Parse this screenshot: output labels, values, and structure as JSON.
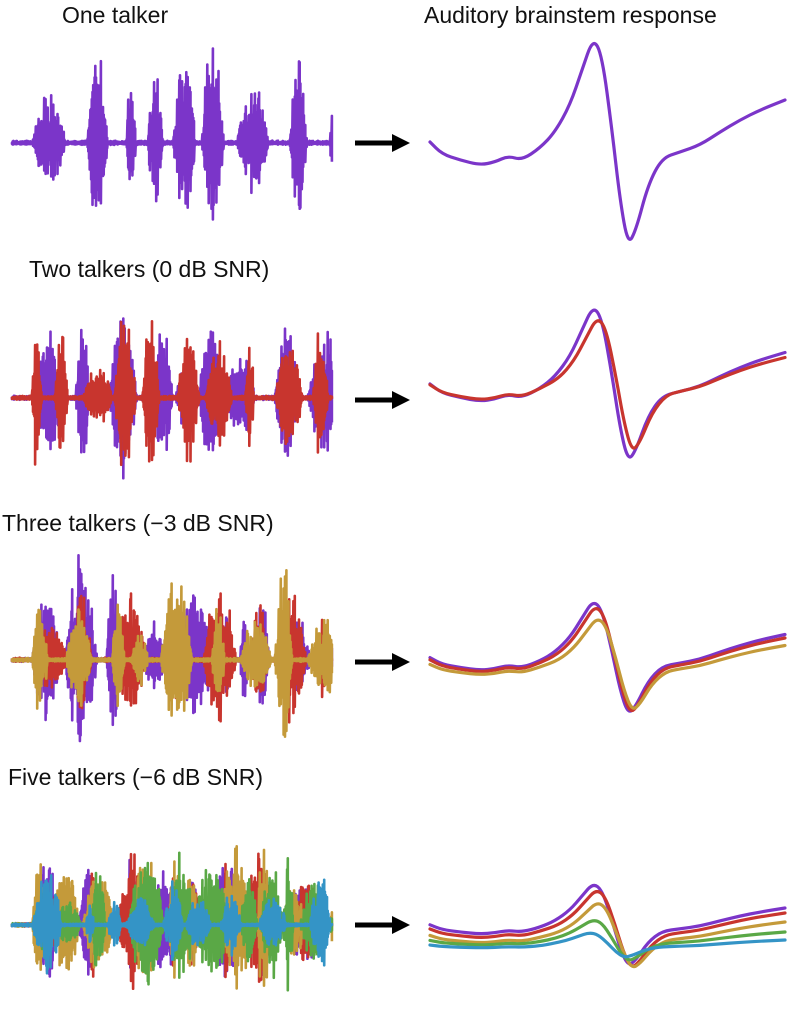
{
  "column_titles": {
    "right": "Auditory brainstem response"
  },
  "panels": [
    {
      "title": "One talker",
      "talkers": 1
    },
    {
      "title": "Two talkers (0 dB SNR)",
      "talkers": 2
    },
    {
      "title": "Three talkers (−3 dB SNR)",
      "talkers": 3
    },
    {
      "title": "Five talkers (−6 dB SNR)",
      "talkers": 5
    }
  ],
  "talker_colors": [
    "#7b35c9",
    "#c8352e",
    "#c49a3a",
    "#5aa846",
    "#3494c6"
  ],
  "arrow_color": "#000000",
  "icons": [
    "arrow-right-icon"
  ]
}
